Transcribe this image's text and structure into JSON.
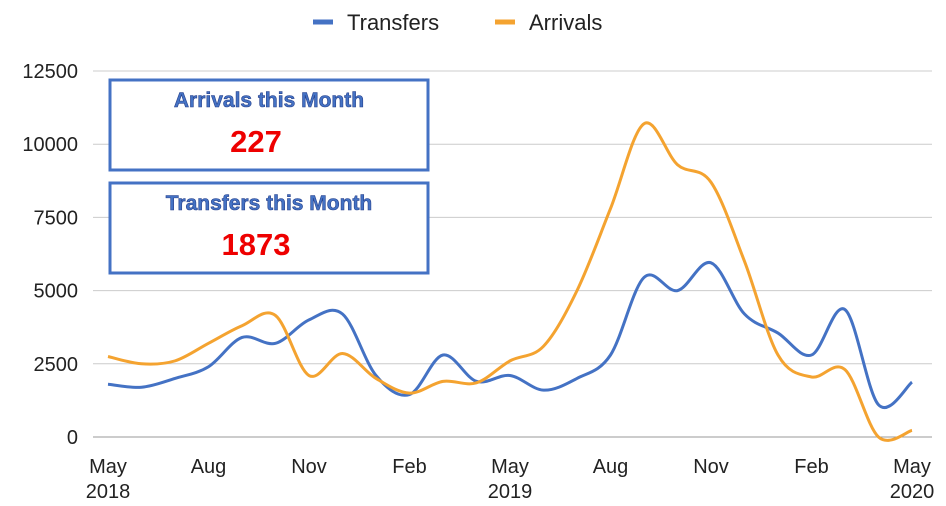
{
  "chart_data": {
    "type": "line",
    "categories": [
      "May 2018",
      null,
      null,
      "Aug",
      null,
      null,
      "Nov",
      null,
      null,
      "Feb",
      null,
      null,
      "May 2019",
      null,
      null,
      "Aug",
      null,
      null,
      "Nov",
      null,
      null,
      "Feb",
      null,
      null,
      "May 2020"
    ],
    "series": [
      {
        "name": "Transfers",
        "color": "#4472c4",
        "values": [
          1800,
          1700,
          2000,
          2400,
          3400,
          3200,
          4000,
          4200,
          2100,
          1450,
          2800,
          1900,
          2100,
          1600,
          2000,
          2800,
          5450,
          5000,
          5950,
          4200,
          3550,
          2800,
          4350,
          1100,
          1873
        ]
      },
      {
        "name": "Arrivals",
        "color": "#f4a330",
        "values": [
          2750,
          2500,
          2600,
          3200,
          3800,
          4150,
          2100,
          2850,
          2000,
          1500,
          1900,
          1850,
          2600,
          3100,
          5000,
          7800,
          10700,
          9300,
          8700,
          6000,
          2800,
          2050,
          2300,
          0,
          227
        ]
      }
    ],
    "ylim": [
      0,
      12500
    ],
    "yticks": [
      0,
      2500,
      5000,
      7500,
      10000,
      12500
    ],
    "grid": true,
    "legend": "top",
    "annotations": [
      {
        "label": "Arrivals this Month",
        "value": "227"
      },
      {
        "label": "Transfers this Month",
        "value": "1873"
      }
    ]
  }
}
